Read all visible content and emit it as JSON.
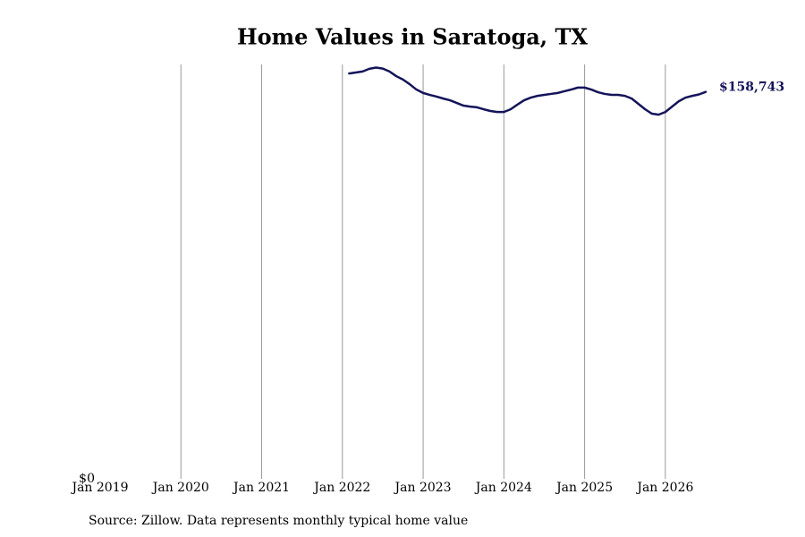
{
  "chart_data": {
    "type": "line",
    "title": "Home Values in Saratoga, TX",
    "source": "Source: Zillow. Data represents monthly typical home value",
    "x": [
      "2022-02",
      "2022-03",
      "2022-04",
      "2022-05",
      "2022-06",
      "2022-07",
      "2022-08",
      "2022-09",
      "2022-10",
      "2022-11",
      "2022-12",
      "2023-01",
      "2023-02",
      "2023-03",
      "2023-04",
      "2023-05",
      "2023-06",
      "2023-07",
      "2023-08",
      "2023-09",
      "2023-10",
      "2023-11",
      "2023-12",
      "2024-01",
      "2024-02",
      "2024-03",
      "2024-04",
      "2024-05",
      "2024-06",
      "2024-07",
      "2024-08",
      "2024-09",
      "2024-10",
      "2024-11",
      "2024-12",
      "2025-01",
      "2025-02",
      "2025-03",
      "2025-04",
      "2025-05",
      "2025-06",
      "2025-07",
      "2025-08",
      "2025-09",
      "2025-10",
      "2025-11",
      "2025-12",
      "2026-01",
      "2026-02",
      "2026-03",
      "2026-04",
      "2026-05",
      "2026-06",
      "2026-07"
    ],
    "series": [
      {
        "color": "#14145a",
        "values": [
          166300,
          166700,
          167100,
          168200,
          168700,
          168300,
          167100,
          165200,
          163800,
          161900,
          159700,
          158300,
          157500,
          156800,
          156000,
          155300,
          154200,
          153100,
          152700,
          152400,
          151600,
          150900,
          150500,
          150500,
          151600,
          153500,
          155300,
          156400,
          157100,
          157500,
          157900,
          158300,
          159000,
          159700,
          160500,
          160500,
          159700,
          158600,
          157900,
          157500,
          157500,
          157100,
          156000,
          153800,
          151600,
          149800,
          149400,
          150500,
          152700,
          154900,
          156400,
          157100,
          157700,
          158743
        ]
      }
    ],
    "last_value_label": "$158,743",
    "xlim": [
      "2019-01",
      "2026-07"
    ],
    "xticks": [
      {
        "value": "2019-01",
        "label": "Jan 2019"
      },
      {
        "value": "2020-01",
        "label": "Jan 2020"
      },
      {
        "value": "2021-01",
        "label": "Jan 2021"
      },
      {
        "value": "2022-01",
        "label": "Jan 2022"
      },
      {
        "value": "2023-01",
        "label": "Jan 2023"
      },
      {
        "value": "2024-01",
        "label": "Jan 2024"
      },
      {
        "value": "2025-01",
        "label": "Jan 2025"
      },
      {
        "value": "2026-01",
        "label": "Jan 2026"
      }
    ],
    "ylim": [
      0,
      170000
    ],
    "yticks": [
      {
        "value": 0,
        "label": "$0"
      }
    ],
    "grid": true
  }
}
